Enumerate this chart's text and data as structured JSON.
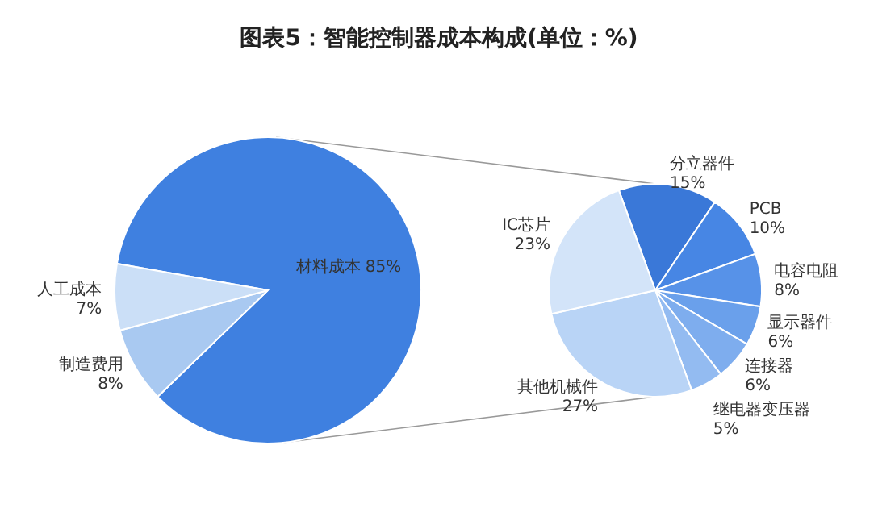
{
  "chart_data": [
    {
      "type": "pie",
      "title": "图表5：智能控制器成本构成(单位：%)",
      "categories": [
        "材料成本",
        "制造费用",
        "人工成本"
      ],
      "values": [
        85,
        8,
        7
      ],
      "value_labels": [
        "85%",
        "8%",
        "7%"
      ],
      "colors": [
        "#3f80e0",
        "#a9c9f1",
        "#cbdff7"
      ]
    },
    {
      "type": "pie",
      "categories": [
        "分立器件",
        "PCB",
        "电容电阻",
        "显示器件",
        "连接器",
        "继电器变压器",
        "其他机械件",
        "IC芯片"
      ],
      "values": [
        15,
        10,
        8,
        6,
        6,
        5,
        27,
        23
      ],
      "value_labels": [
        "15%",
        "10%",
        "8%",
        "6%",
        "6%",
        "5%",
        "27%",
        "23%"
      ],
      "colors": [
        "#3a78d8",
        "#4786e4",
        "#5792e8",
        "#6aa0eb",
        "#7eadee",
        "#93bbf1",
        "#b9d4f6",
        "#d3e4f9"
      ]
    }
  ]
}
